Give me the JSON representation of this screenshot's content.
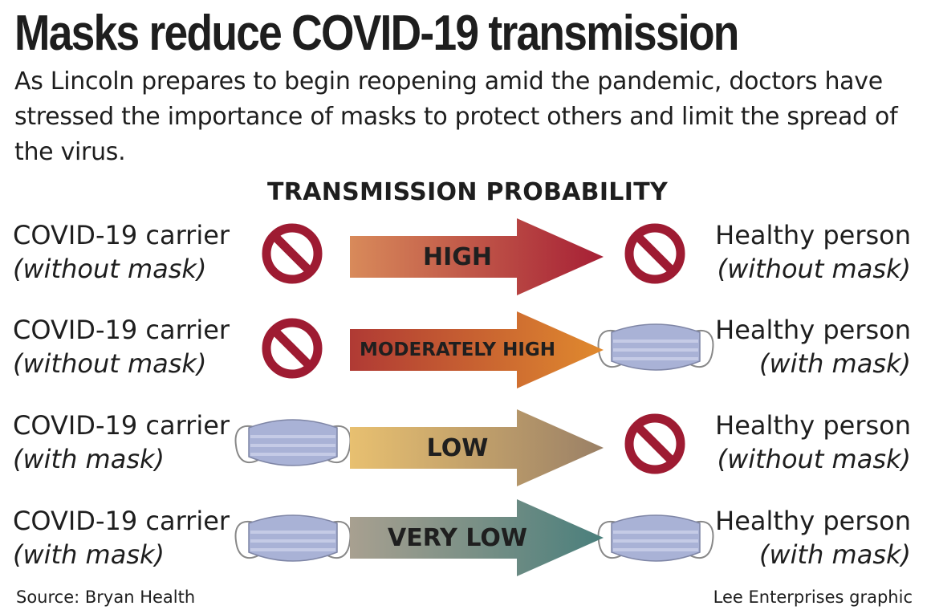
{
  "title": "Masks reduce COVID-19 transmission",
  "intro": "As Lincoln prepares to begin reopening amid the pandemic, doctors have stressed the importance of masks to protect others and limit the spread of the virus.",
  "section_heading": "TRANSMISSION PROBABILITY",
  "rows": [
    {
      "carrier": "COVID-19 carrier",
      "carrier_mask": "(without mask)",
      "carrier_icon": "no-mask-icon",
      "probability": "HIGH",
      "person": "Healthy person",
      "person_mask": "(without mask)",
      "person_icon": "no-mask-icon",
      "gradient": [
        "#d88a5a",
        "#a61f35"
      ]
    },
    {
      "carrier": "COVID-19 carrier",
      "carrier_mask": "(without mask)",
      "carrier_icon": "no-mask-icon",
      "probability": "MODERATELY HIGH",
      "person": "Healthy person",
      "person_mask": "(with mask)",
      "person_icon": "face-mask-icon",
      "gradient": [
        "#b03a34",
        "#e08a2e"
      ]
    },
    {
      "carrier": "COVID-19 carrier",
      "carrier_mask": "(with mask)",
      "carrier_icon": "face-mask-icon",
      "probability": "LOW",
      "person": "Healthy person",
      "person_mask": "(without mask)",
      "person_icon": "no-mask-icon",
      "gradient": [
        "#e8c070",
        "#9a8066"
      ]
    },
    {
      "carrier": "COVID-19 carrier",
      "carrier_mask": "(with mask)",
      "carrier_icon": "face-mask-icon",
      "probability": "VERY LOW",
      "person": "Healthy person",
      "person_mask": "(with mask)",
      "person_icon": "face-mask-icon",
      "gradient": [
        "#a8a090",
        "#4a7f7c"
      ]
    }
  ],
  "colors": {
    "no_symbol": "#9e1b32",
    "mask_fill": "#a9b2d6",
    "mask_stripe": "#c5cbe6",
    "mask_outline": "#7f86a6"
  },
  "footer": {
    "source": "Source: Bryan Health",
    "credit": "Lee Enterprises graphic"
  }
}
